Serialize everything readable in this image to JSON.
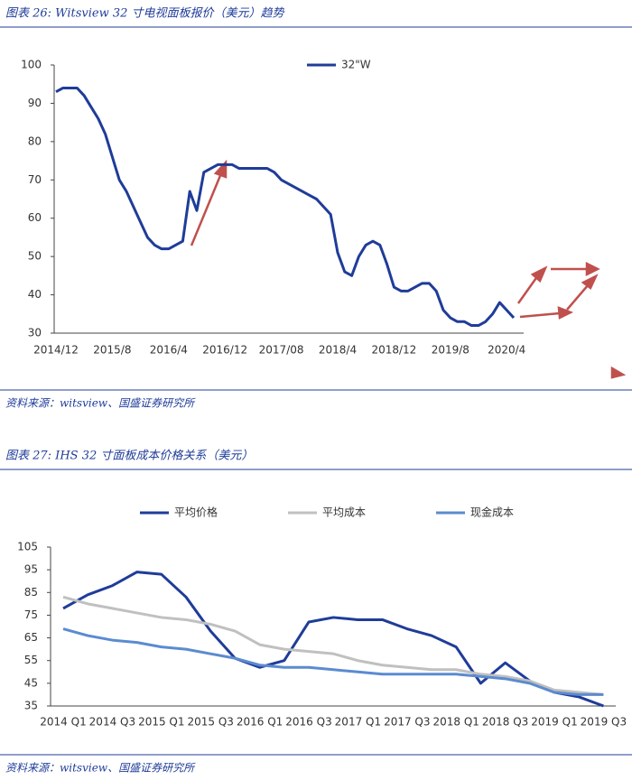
{
  "chart_data": [
    {
      "type": "line",
      "title": "图表 26:  Witsview 32 寸电视面板报价（美元）趋势",
      "source": "资料来源：witsview、国盛证券研究所",
      "categories": [
        "2014/12",
        null,
        null,
        null,
        null,
        null,
        null,
        null,
        "2015/8",
        null,
        null,
        null,
        null,
        null,
        null,
        null,
        "2016/4",
        null,
        null,
        null,
        null,
        null,
        null,
        null,
        "2016/12",
        null,
        null,
        null,
        null,
        null,
        null,
        null,
        "2017/08",
        null,
        null,
        null,
        null,
        null,
        null,
        null,
        "2018/4",
        null,
        null,
        null,
        null,
        null,
        null,
        null,
        "2018/12",
        null,
        null,
        null,
        null,
        null,
        null,
        null,
        "2019/8",
        null,
        null,
        null,
        null,
        null,
        null,
        null,
        "2020/4",
        null
      ],
      "series": [
        {
          "name": "32\"W",
          "color": "#1f3c99",
          "values": [
            93,
            94,
            94,
            94,
            92,
            89,
            86,
            82,
            76,
            70,
            67,
            63,
            59,
            55,
            53,
            52,
            52,
            53,
            54,
            67,
            62,
            72,
            73,
            74,
            74,
            74,
            73,
            73,
            73,
            73,
            73,
            72,
            70,
            69,
            68,
            67,
            66,
            65,
            63,
            61,
            51,
            46,
            45,
            50,
            53,
            54,
            53,
            48,
            42,
            41,
            41,
            42,
            43,
            43,
            41,
            36,
            34,
            33,
            33,
            32,
            32,
            33,
            35,
            38,
            36,
            34
          ]
        }
      ],
      "ylim": [
        30,
        100
      ],
      "yticks": [
        30,
        40,
        50,
        60,
        70,
        80,
        90,
        100
      ],
      "legend": "top-right"
    },
    {
      "type": "line",
      "title": "图表 27:  IHS 32 寸面板成本价格关系（美元）",
      "source": "资料来源：witsview、国盛证券研究所",
      "categories": [
        "2014  Q1",
        null,
        "2014  Q3",
        null,
        "2015  Q1",
        null,
        "2015  Q3",
        null,
        "2016  Q1",
        null,
        "2016  Q3",
        null,
        "2017  Q1",
        null,
        "2017  Q3",
        null,
        "2018  Q1",
        null,
        "2018  Q3",
        null,
        "2019  Q1",
        null,
        "2019  Q3"
      ],
      "series": [
        {
          "name": "平均价格",
          "color": "#1f3c99",
          "values": [
            78,
            84,
            88,
            94,
            93,
            83,
            68,
            56,
            52,
            55,
            72,
            74,
            73,
            73,
            69,
            66,
            61,
            45,
            54,
            46,
            41,
            39,
            35
          ]
        },
        {
          "name": "平均成本",
          "color": "#c0c0c0",
          "values": [
            83,
            80,
            78,
            76,
            74,
            73,
            71,
            68,
            62,
            60,
            59,
            58,
            55,
            53,
            52,
            51,
            51,
            49,
            48,
            46,
            42,
            41,
            40
          ]
        },
        {
          "name": "现金成本",
          "color": "#5b8bd0",
          "values": [
            69,
            66,
            64,
            63,
            61,
            60,
            58,
            56,
            53,
            52,
            52,
            51,
            50,
            49,
            49,
            49,
            49,
            48,
            47,
            45,
            41,
            40,
            40
          ]
        }
      ],
      "ylim": [
        35,
        105
      ],
      "yticks": [
        35,
        45,
        55,
        65,
        75,
        85,
        95,
        105
      ],
      "legend": "top"
    }
  ]
}
